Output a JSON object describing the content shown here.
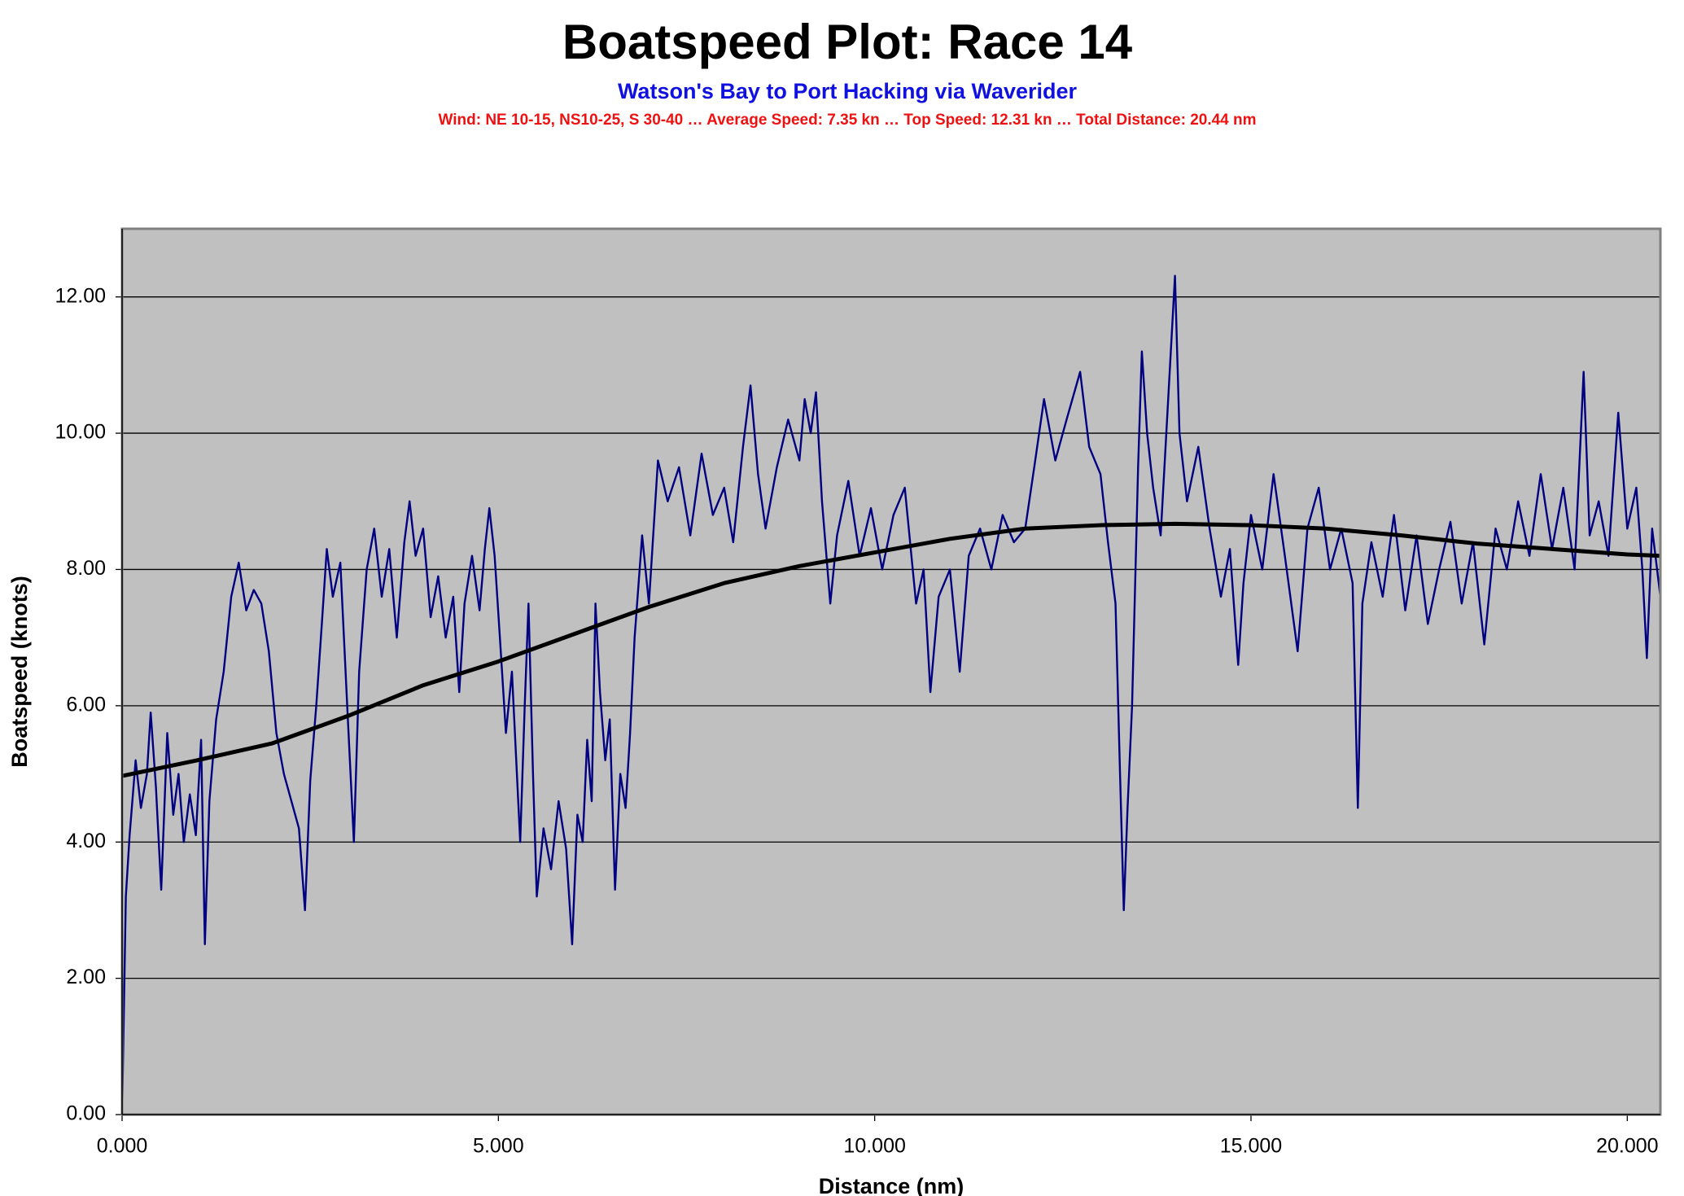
{
  "chart_data": {
    "type": "line",
    "title": "Boatspeed Plot: Race 14",
    "subtitle": "Watson's Bay to Port Hacking via Waverider",
    "annotation": "Wind: NE 10-15, NS10-25, S 30-40 … Average Speed: 7.35 kn … Top Speed: 12.31 kn … Total Distance: 20.44 nm",
    "x_label": "Distance (nm)",
    "y_label": "Boatspeed (knots)",
    "xlim": [
      0,
      20.44
    ],
    "ylim": [
      0,
      13
    ],
    "xticks": [
      {
        "value": 0,
        "label": "0.000"
      },
      {
        "value": 5,
        "label": "5.000"
      },
      {
        "value": 10,
        "label": "10.000"
      },
      {
        "value": 15,
        "label": "15.000"
      },
      {
        "value": 20,
        "label": "20.000"
      }
    ],
    "yticks": [
      {
        "value": 0,
        "label": "0.00"
      },
      {
        "value": 2,
        "label": "2.00"
      },
      {
        "value": 4,
        "label": "4.00"
      },
      {
        "value": 6,
        "label": "6.00"
      },
      {
        "value": 8,
        "label": "8.00"
      },
      {
        "value": 10,
        "label": "10.00"
      },
      {
        "value": 12,
        "label": "12.00"
      }
    ],
    "grid": true,
    "plot_background": "#c0c0c0",
    "series": [
      {
        "color": "#000080",
        "x": [
          0,
          0.05,
          0.1,
          0.18,
          0.25,
          0.33,
          0.38,
          0.45,
          0.52,
          0.6,
          0.68,
          0.75,
          0.82,
          0.9,
          0.98,
          1.05,
          1.1,
          1.16,
          1.25,
          1.35,
          1.45,
          1.55,
          1.65,
          1.75,
          1.85,
          1.95,
          2.05,
          2.15,
          2.25,
          2.35,
          2.43,
          2.5,
          2.58,
          2.66,
          2.72,
          2.8,
          2.9,
          3.0,
          3.08,
          3.15,
          3.25,
          3.35,
          3.45,
          3.55,
          3.65,
          3.75,
          3.82,
          3.9,
          4.0,
          4.1,
          4.2,
          4.3,
          4.4,
          4.48,
          4.55,
          4.65,
          4.75,
          4.82,
          4.88,
          4.95,
          5.02,
          5.1,
          5.18,
          5.29,
          5.35,
          5.4,
          5.46,
          5.51,
          5.6,
          5.7,
          5.8,
          5.9,
          5.98,
          6.05,
          6.12,
          6.18,
          6.24,
          6.29,
          6.35,
          6.42,
          6.48,
          6.55,
          6.62,
          6.69,
          6.75,
          6.81,
          6.91,
          7.0,
          7.12,
          7.25,
          7.4,
          7.55,
          7.7,
          7.85,
          8.0,
          8.12,
          8.25,
          8.35,
          8.45,
          8.55,
          8.7,
          8.85,
          9.0,
          9.07,
          9.15,
          9.22,
          9.3,
          9.41,
          9.5,
          9.65,
          9.8,
          9.95,
          10.1,
          10.25,
          10.4,
          10.55,
          10.65,
          10.74,
          10.85,
          11.0,
          11.13,
          11.25,
          11.4,
          11.55,
          11.7,
          11.85,
          12.0,
          12.12,
          12.25,
          12.4,
          12.55,
          12.73,
          12.85,
          13.0,
          13.1,
          13.2,
          13.26,
          13.31,
          13.36,
          13.42,
          13.5,
          13.55,
          13.62,
          13.7,
          13.8,
          13.9,
          13.99,
          14.05,
          14.15,
          14.3,
          14.45,
          14.6,
          14.72,
          14.83,
          14.9,
          15.0,
          15.15,
          15.3,
          15.45,
          15.62,
          15.75,
          15.9,
          16.05,
          16.2,
          16.35,
          16.42,
          16.48,
          16.6,
          16.75,
          16.9,
          17.05,
          17.2,
          17.35,
          17.5,
          17.65,
          17.8,
          17.95,
          18.1,
          18.25,
          18.4,
          18.55,
          18.7,
          18.85,
          19.0,
          19.15,
          19.3,
          19.42,
          19.5,
          19.62,
          19.75,
          19.88,
          20.0,
          20.12,
          20.2,
          20.26,
          20.33,
          20.44
        ],
        "values": [
          0.0,
          3.2,
          4.1,
          5.2,
          4.5,
          5.0,
          5.9,
          4.8,
          3.3,
          5.6,
          4.4,
          5.0,
          4.0,
          4.7,
          4.1,
          5.5,
          2.5,
          4.6,
          5.8,
          6.5,
          7.6,
          8.1,
          7.4,
          7.7,
          7.5,
          6.8,
          5.6,
          5.0,
          4.6,
          4.2,
          3.0,
          4.9,
          6.0,
          7.3,
          8.3,
          7.6,
          8.1,
          5.8,
          4.0,
          6.5,
          8.0,
          8.6,
          7.6,
          8.3,
          7.0,
          8.4,
          9.0,
          8.2,
          8.6,
          7.3,
          7.9,
          7.0,
          7.6,
          6.2,
          7.5,
          8.2,
          7.4,
          8.3,
          8.9,
          8.2,
          7.0,
          5.6,
          6.5,
          4.0,
          6.0,
          7.5,
          5.0,
          3.2,
          4.2,
          3.6,
          4.6,
          3.9,
          2.5,
          4.4,
          4.0,
          5.5,
          4.6,
          7.5,
          6.2,
          5.2,
          5.8,
          3.3,
          5.0,
          4.5,
          5.6,
          7.0,
          8.5,
          7.5,
          9.6,
          9.0,
          9.5,
          8.5,
          9.7,
          8.8,
          9.2,
          8.4,
          9.8,
          10.7,
          9.4,
          8.6,
          9.5,
          10.2,
          9.6,
          10.5,
          10.0,
          10.6,
          9.0,
          7.5,
          8.5,
          9.3,
          8.2,
          8.9,
          8.0,
          8.8,
          9.2,
          7.5,
          8.0,
          6.2,
          7.6,
          8.0,
          6.5,
          8.2,
          8.6,
          8.0,
          8.8,
          8.4,
          8.6,
          9.5,
          10.5,
          9.6,
          10.2,
          10.9,
          9.8,
          9.4,
          8.4,
          7.5,
          5.0,
          3.0,
          4.5,
          6.0,
          9.5,
          11.2,
          10.0,
          9.2,
          8.5,
          10.5,
          12.31,
          10.0,
          9.0,
          9.8,
          8.6,
          7.6,
          8.3,
          6.6,
          7.8,
          8.8,
          8.0,
          9.4,
          8.2,
          6.8,
          8.6,
          9.2,
          8.0,
          8.6,
          7.8,
          4.5,
          7.5,
          8.4,
          7.6,
          8.8,
          7.4,
          8.5,
          7.2,
          8.0,
          8.7,
          7.5,
          8.4,
          6.9,
          8.6,
          8.0,
          9.0,
          8.2,
          9.4,
          8.3,
          9.2,
          8.0,
          10.9,
          8.5,
          9.0,
          8.2,
          10.3,
          8.6,
          9.2,
          8.0,
          6.7,
          8.6,
          7.6
        ]
      },
      {
        "color": "#000000",
        "x": [
          0,
          1,
          2,
          3,
          4,
          5,
          6,
          7,
          8,
          9,
          10,
          11,
          12,
          13,
          14,
          15,
          16,
          17,
          18,
          19,
          20,
          20.44
        ],
        "values": [
          4.97,
          5.2,
          5.45,
          5.85,
          6.3,
          6.65,
          7.05,
          7.45,
          7.8,
          8.05,
          8.25,
          8.45,
          8.6,
          8.65,
          8.67,
          8.65,
          8.6,
          8.5,
          8.38,
          8.3,
          8.22,
          8.2
        ]
      }
    ]
  }
}
